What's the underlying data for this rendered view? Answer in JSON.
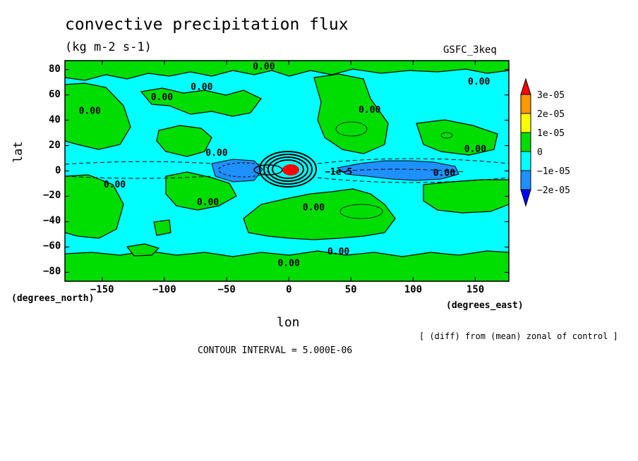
{
  "chart_data": {
    "type": "heatmap",
    "title": "convective precipitation flux",
    "units": "(kg m-2 s-1)",
    "model": "GSFC_3keq",
    "xlabel": "lon",
    "ylabel": "lat",
    "x_units": "(degrees_east)",
    "y_units": "(degrees_north)",
    "xlim": [
      -180,
      177
    ],
    "ylim": [
      -87,
      87
    ],
    "x_ticks": [
      -150,
      -100,
      -50,
      0,
      50,
      100,
      150
    ],
    "y_ticks": [
      80,
      60,
      40,
      20,
      0,
      -20,
      -40,
      -60,
      -80
    ],
    "note": "[ (diff) from (mean) zonal of control ]",
    "contour_interval": "CONTOUR INTERVAL = 5.000E-06",
    "colorbar": {
      "labels": [
        "3e-05",
        "2e-05",
        "1e-05",
        "0",
        "−1e-05",
        "−2e-05"
      ],
      "colors": [
        "#ff0000",
        "#ff9900",
        "#ffff00",
        "#00dd00",
        "#00ffff",
        "#1e90ff",
        "#0000ff"
      ]
    },
    "contour_labels": [
      {
        "text": "0.00",
        "lon": -20,
        "lat": 80
      },
      {
        "text": "0.00",
        "lon": -70,
        "lat": 64
      },
      {
        "text": "0.00",
        "lon": -102,
        "lat": 56
      },
      {
        "text": "0.00",
        "lon": -160,
        "lat": 45
      },
      {
        "text": "0.00",
        "lon": 65,
        "lat": 46
      },
      {
        "text": "0.00",
        "lon": 153,
        "lat": 68
      },
      {
        "text": "0.00",
        "lon": 150,
        "lat": 15
      },
      {
        "text": "0.00",
        "lon": -58,
        "lat": 12
      },
      {
        "text": "−1e−5",
        "lon": 40,
        "lat": -3
      },
      {
        "text": "0.00",
        "lon": 125,
        "lat": -4
      },
      {
        "text": "0.00",
        "lon": -140,
        "lat": -13
      },
      {
        "text": "0.00",
        "lon": -65,
        "lat": -27
      },
      {
        "text": "0.00",
        "lon": 20,
        "lat": -31
      },
      {
        "text": "0.00",
        "lon": 40,
        "lat": -66
      },
      {
        "text": "0.00",
        "lon": 0,
        "lat": -75
      }
    ]
  }
}
